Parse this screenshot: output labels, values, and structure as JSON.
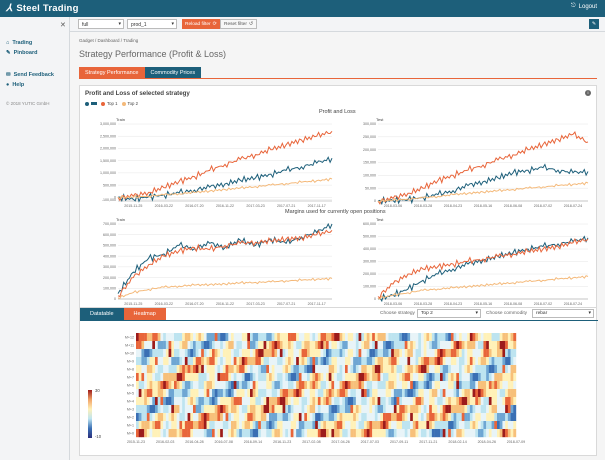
{
  "app": {
    "logo_mark": "⅄",
    "title": "Steel Trading",
    "logout": "Logout"
  },
  "sidebar": {
    "items": [
      {
        "label": "Trading",
        "icon": "home-icon"
      },
      {
        "label": "Pinboard",
        "icon": "pin-icon"
      },
      {
        "label": "Send Feedback",
        "icon": "mail-icon"
      },
      {
        "label": "Help",
        "icon": "help-icon"
      }
    ],
    "copyright": "© 2018 YUTIC GmbH"
  },
  "toolbar": {
    "select1": "full",
    "select2": "prod_1",
    "reload_label": "Reload filter",
    "reset_label": "Reset filter"
  },
  "breadcrumb": "Gadget / Dashboard / Trading",
  "page_title": "Strategy Performance (Profit & Loss)",
  "tabs": [
    "Strategy Performance",
    "Commodity Prices"
  ],
  "panel": {
    "title": "Profit and Loss of selected strategy",
    "legend": [
      {
        "name": "Top 1",
        "color": "#e8653a"
      },
      {
        "name": "Top 2",
        "color": "#f4b97a"
      }
    ],
    "pnl_title": "Profit and Loss",
    "margin_title": "Margins used for currently open positions"
  },
  "colors": {
    "blue": "#1d5f7a",
    "orange": "#e8653a",
    "light_orange": "#f4b97a"
  },
  "chart_data": [
    {
      "type": "line",
      "id": "pnl-train",
      "label": "Train",
      "xticks": [
        "2015-11-25",
        "2016-03-22",
        "2016-07-20",
        "2016-11-22",
        "2017-03-23",
        "2017-07-21",
        "2017-11-17"
      ],
      "yticks": [
        "-100,000",
        "0",
        "500,000",
        "1,000,000",
        "1,500,000",
        "2,000,000",
        "2,500,000",
        "3,000,000"
      ],
      "ylim": [
        -150000,
        3000000
      ],
      "series": [
        {
          "values": [
            0,
            -80000,
            20000,
            100000,
            180000,
            300000,
            420000,
            550000,
            700000,
            800000,
            950000,
            1100000,
            1250000,
            1400000,
            1600000
          ]
        },
        {
          "name": "Top 1",
          "values": [
            0,
            50000,
            200000,
            400000,
            650000,
            850000,
            1100000,
            1350000,
            1550000,
            1750000,
            1950000,
            2150000,
            2350000,
            2500000,
            2700000
          ]
        },
        {
          "name": "Top 2",
          "values": [
            0,
            10000,
            50000,
            100000,
            150000,
            200000,
            260000,
            320000,
            380000,
            440000,
            500000,
            560000,
            620000,
            680000,
            750000
          ]
        }
      ]
    },
    {
      "type": "line",
      "id": "pnl-test",
      "label": "Test",
      "xticks": [
        "2018-03-06",
        "2018-03-28",
        "2018-04-23",
        "2018-05-16",
        "2018-06-08",
        "2018-07-02",
        "2018-07-24"
      ],
      "yticks": [
        "0",
        "50,000",
        "100,000",
        "150,000",
        "200,000",
        "250,000",
        "300,000"
      ],
      "ylim": [
        0,
        300000
      ],
      "series": [
        {
          "values": [
            0,
            2000,
            5000,
            15000,
            25000,
            40000,
            60000,
            75000,
            90000,
            110000,
            120000,
            130000,
            120000,
            110000,
            115000
          ]
        },
        {
          "name": "Top 1",
          "values": [
            0,
            10000,
            30000,
            50000,
            80000,
            100000,
            120000,
            140000,
            160000,
            180000,
            200000,
            220000,
            240000,
            260000,
            230000
          ]
        },
        {
          "name": "Top 2",
          "values": [
            0,
            3000,
            8000,
            12000,
            18000,
            25000,
            30000,
            35000,
            40000,
            45000,
            50000,
            55000,
            60000,
            65000,
            70000
          ]
        }
      ]
    },
    {
      "type": "line",
      "id": "margin-train",
      "label": "Train",
      "xticks": [
        "2015-11-25",
        "2016-03-22",
        "2016-07-20",
        "2016-11-22",
        "2017-03-23",
        "2017-07-21",
        "2017-11-17"
      ],
      "yticks": [
        "0",
        "100,000",
        "200,000",
        "300,000",
        "400,000",
        "500,000",
        "600,000",
        "700,000"
      ],
      "ylim": [
        0,
        700000
      ],
      "series": [
        {
          "values": [
            50000,
            250000,
            380000,
            420000,
            500000,
            470000,
            520000,
            480000,
            550000,
            500000,
            560000,
            520000,
            580000,
            620000,
            700000
          ]
        },
        {
          "name": "Top 1",
          "values": [
            30000,
            200000,
            320000,
            400000,
            450000,
            480000,
            460000,
            500000,
            520000,
            530000,
            540000,
            560000,
            570000,
            600000,
            640000
          ]
        },
        {
          "name": "Top 2",
          "values": [
            10000,
            60000,
            90000,
            110000,
            120000,
            130000,
            135000,
            140000,
            150000,
            155000,
            160000,
            170000,
            175000,
            185000,
            190000
          ]
        }
      ]
    },
    {
      "type": "line",
      "id": "margin-test",
      "label": "Test",
      "xticks": [
        "2018-03-06",
        "2018-03-28",
        "2018-04-23",
        "2018-05-16",
        "2018-06-08",
        "2018-07-02",
        "2018-07-24"
      ],
      "yticks": [
        "0",
        "100,000",
        "200,000",
        "300,000",
        "400,000",
        "500,000",
        "600,000"
      ],
      "ylim": [
        0,
        600000
      ],
      "series": [
        {
          "values": [
            0,
            30000,
            80000,
            150000,
            200000,
            240000,
            280000,
            310000,
            340000,
            370000,
            400000,
            420000,
            440000,
            460000,
            490000
          ]
        },
        {
          "name": "Top 1",
          "values": [
            20000,
            120000,
            200000,
            240000,
            260000,
            280000,
            300000,
            320000,
            340000,
            360000,
            380000,
            400000,
            420000,
            450000,
            480000
          ]
        },
        {
          "name": "Top 2",
          "values": [
            5000,
            30000,
            50000,
            70000,
            80000,
            90000,
            100000,
            110000,
            120000,
            130000,
            140000,
            150000,
            160000,
            170000,
            180000
          ]
        }
      ]
    },
    {
      "type": "heatmap",
      "id": "heatmap",
      "rows": [
        "M+12",
        "M+11",
        "M+10",
        "M+9",
        "M+8",
        "M+7",
        "M+6",
        "M+5",
        "M+4",
        "M+3",
        "M+2",
        "M+1",
        "M+0"
      ],
      "xticks": [
        "2015-11-23",
        "2016-02-03",
        "2016-04-28",
        "2016-07-08",
        "2016-09-14",
        "2016-11-23",
        "2017-02-08",
        "2017-04-26",
        "2017-07-03",
        "2017-09-11",
        "2017-11-21",
        "2018-02-14",
        "2018-04-26",
        "2018-07-09"
      ],
      "colorbar": {
        "max": "30",
        "min": "-10"
      }
    }
  ],
  "bottom": {
    "tabs": [
      "Datatable",
      "Heatmap"
    ],
    "strategy_label": "Choose strategy",
    "strategy_value": "Top 2",
    "commodity_label": "Choose commodity",
    "commodity_value": "rebar"
  }
}
